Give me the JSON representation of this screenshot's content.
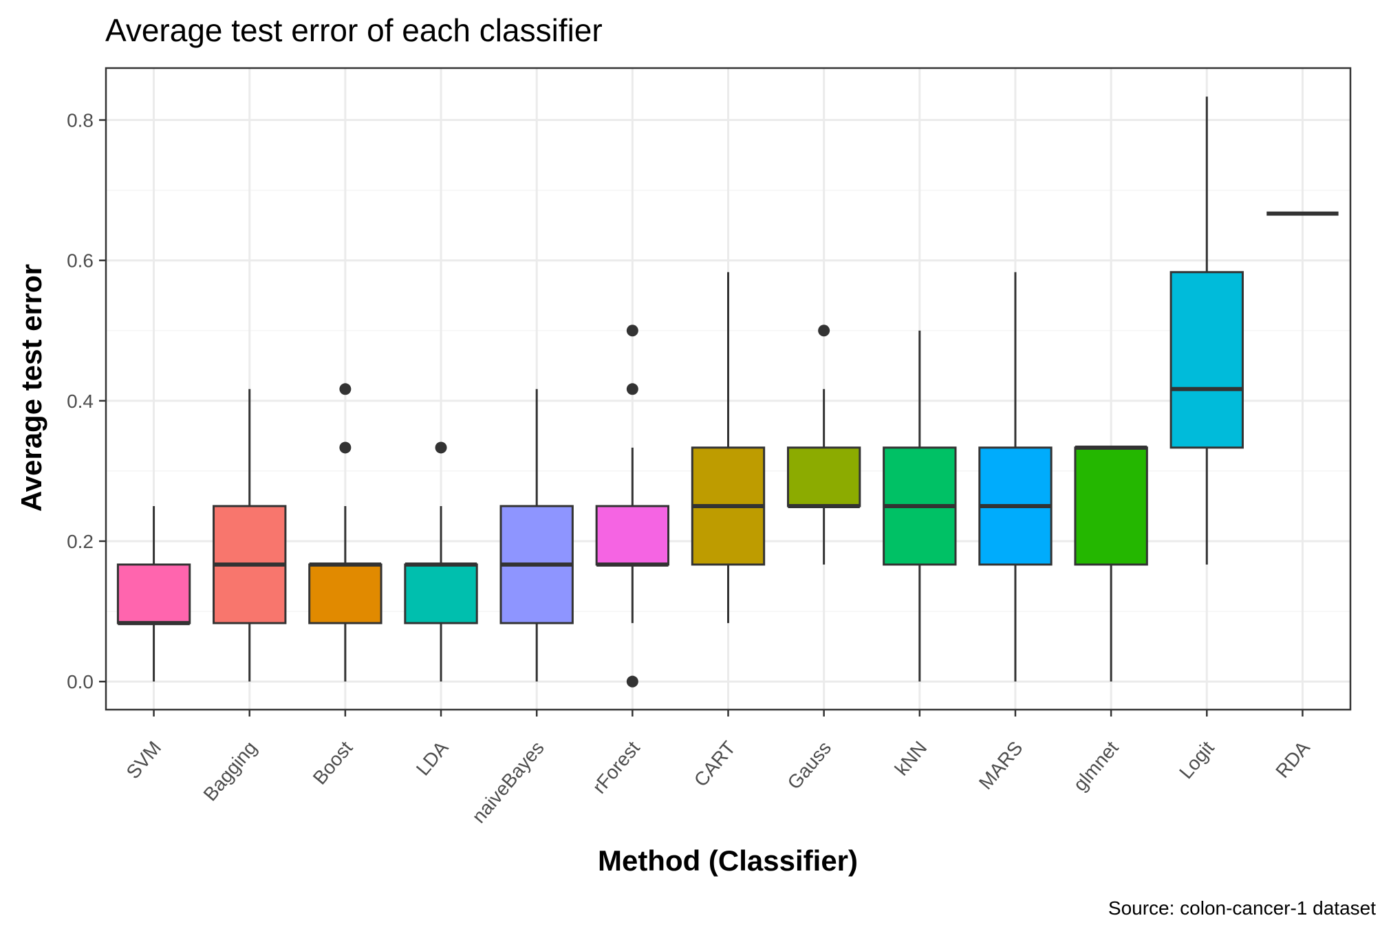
{
  "chart_data": {
    "type": "box",
    "title": "Average test error of each classifier",
    "xlabel": "Method (Classifier)",
    "ylabel": "Average test error",
    "caption": "Source: colon-cancer-1 dataset",
    "ylim": [
      -0.04,
      0.874
    ],
    "yticks": [
      0.0,
      0.2,
      0.4,
      0.6,
      0.8
    ],
    "ytick_labels": [
      "0.0",
      "0.2",
      "0.4",
      "0.6",
      "0.8"
    ],
    "grid": true,
    "legend": "none",
    "categories": [
      "SVM",
      "Bagging",
      "Boost",
      "LDA",
      "naiveBayes",
      "rForest",
      "CART",
      "Gauss",
      "kNN",
      "MARS",
      "glmnet",
      "Logit",
      "RDA"
    ],
    "boxes": [
      {
        "name": "SVM",
        "color": "#FF65AE",
        "whisker_low": 0.0,
        "q1": 0.0833,
        "median": 0.0833,
        "q3": 0.1667,
        "whisker_high": 0.25,
        "outliers": []
      },
      {
        "name": "Bagging",
        "color": "#F8766D",
        "whisker_low": 0.0,
        "q1": 0.0833,
        "median": 0.1667,
        "q3": 0.25,
        "whisker_high": 0.4167,
        "outliers": []
      },
      {
        "name": "Boost",
        "color": "#E18A00",
        "whisker_low": 0.0,
        "q1": 0.0833,
        "median": 0.1667,
        "q3": 0.1667,
        "whisker_high": 0.25,
        "outliers": [
          0.3333,
          0.4167
        ]
      },
      {
        "name": "LDA",
        "color": "#00BFAE",
        "whisker_low": 0.0,
        "q1": 0.0833,
        "median": 0.1667,
        "q3": 0.1667,
        "whisker_high": 0.25,
        "outliers": [
          0.3333
        ]
      },
      {
        "name": "naiveBayes",
        "color": "#8E95FF",
        "whisker_low": 0.0,
        "q1": 0.0833,
        "median": 0.1667,
        "q3": 0.25,
        "whisker_high": 0.4167,
        "outliers": []
      },
      {
        "name": "rForest",
        "color": "#F564E3",
        "whisker_low": 0.0833,
        "q1": 0.1667,
        "median": 0.1667,
        "q3": 0.25,
        "whisker_high": 0.3333,
        "outliers": [
          0.0,
          0.4167,
          0.5
        ]
      },
      {
        "name": "CART",
        "color": "#BE9C00",
        "whisker_low": 0.0833,
        "q1": 0.1667,
        "median": 0.25,
        "q3": 0.3333,
        "whisker_high": 0.5833,
        "outliers": []
      },
      {
        "name": "Gauss",
        "color": "#8CAB00",
        "whisker_low": 0.1667,
        "q1": 0.25,
        "median": 0.25,
        "q3": 0.3333,
        "whisker_high": 0.4167,
        "outliers": [
          0.5
        ]
      },
      {
        "name": "kNN",
        "color": "#00C165",
        "whisker_low": 0.0,
        "q1": 0.1667,
        "median": 0.25,
        "q3": 0.3333,
        "whisker_high": 0.5,
        "outliers": []
      },
      {
        "name": "MARS",
        "color": "#00ACFC",
        "whisker_low": 0.0,
        "q1": 0.1667,
        "median": 0.25,
        "q3": 0.3333,
        "whisker_high": 0.5833,
        "outliers": []
      },
      {
        "name": "glmnet",
        "color": "#24B700",
        "whisker_low": 0.0,
        "q1": 0.1667,
        "median": 0.3333,
        "q3": 0.3333,
        "whisker_high": 0.3333,
        "outliers": []
      },
      {
        "name": "Logit",
        "color": "#00BBDA",
        "whisker_low": 0.1667,
        "q1": 0.3333,
        "median": 0.4167,
        "q3": 0.5833,
        "whisker_high": 0.8333,
        "outliers": []
      },
      {
        "name": "RDA",
        "color": "#A58AFF",
        "whisker_low": 0.6667,
        "q1": 0.6667,
        "median": 0.6667,
        "q3": 0.6667,
        "whisker_high": 0.6667,
        "outliers": []
      }
    ],
    "style": {
      "panel_border": "#333333",
      "grid_major": "#EBEBEB",
      "grid_minor": "#F5F5F5",
      "box_line": "#333333",
      "tick_label_color": "#4D4D4D"
    }
  }
}
